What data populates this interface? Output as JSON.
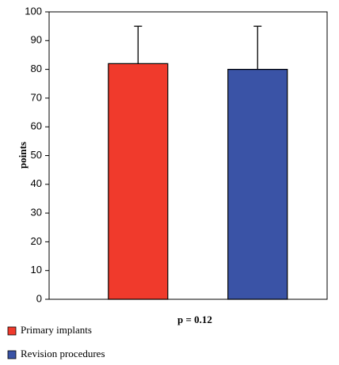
{
  "chart_data": {
    "type": "bar",
    "y_label": "points",
    "x_label": "p = 0.12",
    "categories": [
      null
    ],
    "series": [
      {
        "name": "Primary implants",
        "color": "#f03a2c",
        "values": [
          82
        ],
        "errors": [
          13
        ]
      },
      {
        "name": "Revision procedures",
        "color": "#3a53a6",
        "values": [
          80
        ],
        "errors": [
          15
        ]
      }
    ],
    "ylim": [
      0,
      100
    ],
    "yticks": [
      0,
      10,
      20,
      30,
      40,
      50,
      60,
      70,
      80,
      90,
      100
    ],
    "legend": "bottom-left"
  }
}
